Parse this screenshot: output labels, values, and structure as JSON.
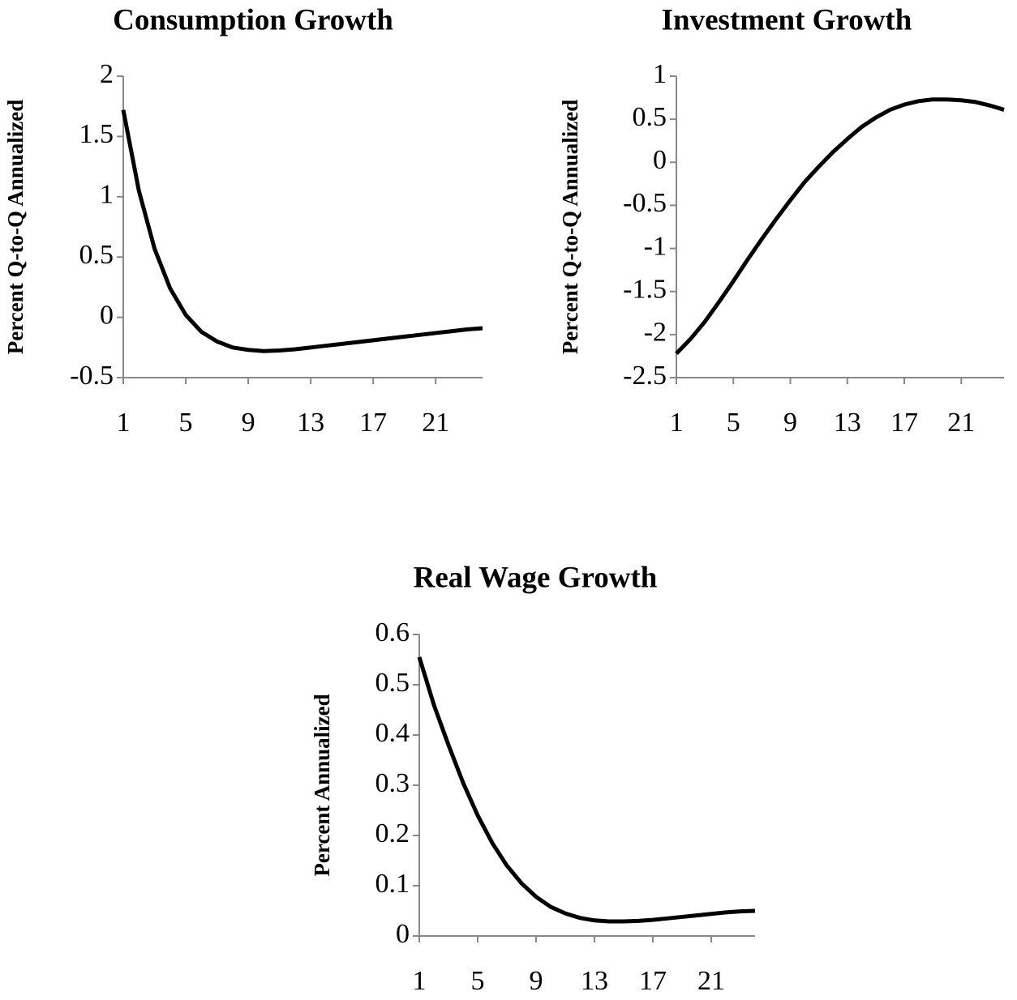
{
  "chart_data": [
    {
      "type": "line",
      "title": "Consumption Growth",
      "y_label": "Percent Q-to-Q Annualized",
      "x": [
        1,
        2,
        3,
        4,
        5,
        6,
        7,
        8,
        9,
        10,
        11,
        12,
        13,
        14,
        15,
        16,
        17,
        18,
        19,
        20,
        21,
        22,
        23,
        24
      ],
      "xlim": [
        1,
        24
      ],
      "xticks": [
        1,
        5,
        9,
        13,
        17,
        21
      ],
      "ylim": [
        -0.5,
        2
      ],
      "yticks": [
        -0.5,
        0,
        0.5,
        1,
        1.5,
        2
      ],
      "series": [
        {
          "color": "#000000",
          "values": [
            1.72,
            1.05,
            0.57,
            0.24,
            0.02,
            -0.12,
            -0.2,
            -0.25,
            -0.27,
            -0.28,
            -0.275,
            -0.265,
            -0.25,
            -0.235,
            -0.22,
            -0.205,
            -0.19,
            -0.175,
            -0.16,
            -0.145,
            -0.13,
            -0.115,
            -0.1,
            -0.09
          ]
        }
      ]
    },
    {
      "type": "line",
      "title": "Investment Growth",
      "y_label": "Percent Q-to-Q Annualized",
      "x": [
        1,
        2,
        3,
        4,
        5,
        6,
        7,
        8,
        9,
        10,
        11,
        12,
        13,
        14,
        15,
        16,
        17,
        18,
        19,
        20,
        21,
        22,
        23,
        24
      ],
      "xlim": [
        1,
        24
      ],
      "xticks": [
        1,
        5,
        9,
        13,
        17,
        21
      ],
      "ylim": [
        -2.5,
        1
      ],
      "yticks": [
        -2.5,
        -2,
        -1.5,
        -1,
        -0.5,
        0,
        0.5,
        1
      ],
      "series": [
        {
          "color": "#000000",
          "values": [
            -2.22,
            -2.05,
            -1.85,
            -1.62,
            -1.38,
            -1.13,
            -0.89,
            -0.66,
            -0.44,
            -0.23,
            -0.05,
            0.12,
            0.27,
            0.41,
            0.52,
            0.61,
            0.67,
            0.71,
            0.73,
            0.73,
            0.72,
            0.7,
            0.66,
            0.61
          ]
        }
      ]
    },
    {
      "type": "line",
      "title": "Real Wage Growth",
      "y_label": "Percent Annualized",
      "x": [
        1,
        2,
        3,
        4,
        5,
        6,
        7,
        8,
        9,
        10,
        11,
        12,
        13,
        14,
        15,
        16,
        17,
        18,
        19,
        20,
        21,
        22,
        23,
        24
      ],
      "xlim": [
        1,
        24
      ],
      "xticks": [
        1,
        5,
        9,
        13,
        17,
        21
      ],
      "ylim": [
        0,
        0.6
      ],
      "yticks": [
        0,
        0.1,
        0.2,
        0.3,
        0.4,
        0.5,
        0.6
      ],
      "series": [
        {
          "color": "#000000",
          "values": [
            0.555,
            0.46,
            0.38,
            0.305,
            0.24,
            0.185,
            0.14,
            0.105,
            0.078,
            0.058,
            0.045,
            0.036,
            0.031,
            0.029,
            0.029,
            0.03,
            0.032,
            0.035,
            0.038,
            0.041,
            0.044,
            0.047,
            0.049,
            0.05
          ]
        }
      ]
    }
  ]
}
